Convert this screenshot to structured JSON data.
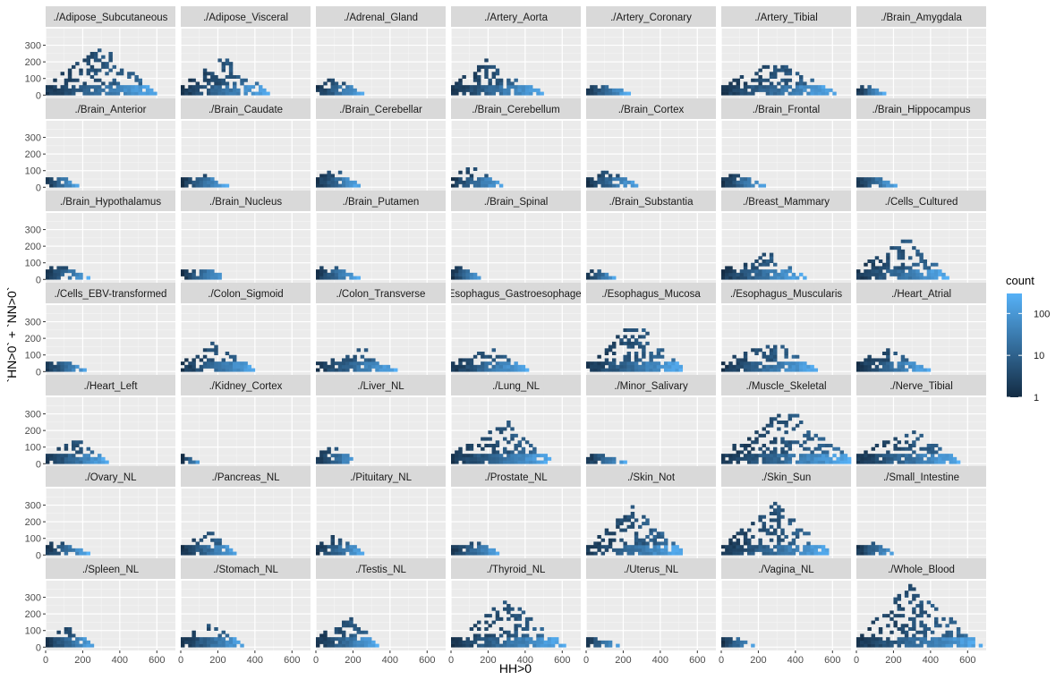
{
  "chart_data": {
    "type": "heatmap",
    "title": "",
    "xlabel": "HH>0",
    "ylabel": "`HN>0` + `NN>0`",
    "xlim": [
      0,
      700
    ],
    "ylim": [
      -20,
      400
    ],
    "x_ticks": [
      0,
      200,
      400,
      600
    ],
    "y_ticks": [
      0,
      100,
      200,
      300
    ],
    "grid": true,
    "facet_rows": 7,
    "facet_cols": 7,
    "legend": {
      "title": "count",
      "position": "right",
      "scale": "log10",
      "breaks": [
        1,
        10,
        100
      ],
      "color_low": "#132B43",
      "color_high": "#56B1F7"
    },
    "panel_background": "#EBEBEB",
    "strip_background": "#D9D9D9",
    "panels": [
      {
        "label": "./Adipose_Subcutaneous",
        "x_max": 590,
        "y_peak": 290,
        "x_peak": 300
      },
      {
        "label": "./Adipose_Visceral",
        "x_max": 470,
        "y_peak": 220,
        "x_peak": 220
      },
      {
        "label": "./Adrenal_Gland",
        "x_max": 250,
        "y_peak": 95,
        "x_peak": 90
      },
      {
        "label": "./Artery_Aorta",
        "x_max": 500,
        "y_peak": 210,
        "x_peak": 180
      },
      {
        "label": "./Artery_Coronary",
        "x_max": 230,
        "y_peak": 65,
        "x_peak": 80
      },
      {
        "label": "./Artery_Tibial",
        "x_max": 620,
        "y_peak": 200,
        "x_peak": 300
      },
      {
        "label": "./Brain_Amygdala",
        "x_max": 150,
        "y_peak": 55,
        "x_peak": 40
      },
      {
        "label": "./Brain_Anterior",
        "x_max": 170,
        "y_peak": 65,
        "x_peak": 60
      },
      {
        "label": "./Brain_Caudate",
        "x_max": 250,
        "y_peak": 80,
        "x_peak": 100
      },
      {
        "label": "./Brain_Cerebellar",
        "x_max": 230,
        "y_peak": 95,
        "x_peak": 100
      },
      {
        "label": "./Brain_Cerebellum",
        "x_max": 280,
        "y_peak": 115,
        "x_peak": 100
      },
      {
        "label": "./Brain_Cortex",
        "x_max": 280,
        "y_peak": 90,
        "x_peak": 110
      },
      {
        "label": "./Brain_Frontal",
        "x_max": 240,
        "y_peak": 80,
        "x_peak": 80
      },
      {
        "label": "./Brain_Hippocampus",
        "x_max": 210,
        "y_peak": 75,
        "x_peak": 70
      },
      {
        "label": "./Brain_Hypothalamus",
        "x_max": 230,
        "y_peak": 75,
        "x_peak": 70
      },
      {
        "label": "./Brain_Nucleus",
        "x_max": 240,
        "y_peak": 80,
        "x_peak": 100
      },
      {
        "label": "./Brain_Putamen",
        "x_max": 230,
        "y_peak": 75,
        "x_peak": 80
      },
      {
        "label": "./Brain_Spinal",
        "x_max": 170,
        "y_peak": 65,
        "x_peak": 50
      },
      {
        "label": "./Brain_Substantia",
        "x_max": 160,
        "y_peak": 45,
        "x_peak": 50
      },
      {
        "label": "./Breast_Mammary",
        "x_max": 450,
        "y_peak": 160,
        "x_peak": 250
      },
      {
        "label": "./Cells_Cultured",
        "x_max": 490,
        "y_peak": 250,
        "x_peak": 280
      },
      {
        "label": "./Cells_EBV-transformed",
        "x_max": 220,
        "y_peak": 60,
        "x_peak": 80
      },
      {
        "label": "./Colon_Sigmoid",
        "x_max": 400,
        "y_peak": 180,
        "x_peak": 180
      },
      {
        "label": "./Colon_Transverse",
        "x_max": 430,
        "y_peak": 130,
        "x_peak": 250
      },
      {
        "label": "./Esophagus_Gastroesophageal",
        "x_max": 410,
        "y_peak": 130,
        "x_peak": 220
      },
      {
        "label": "./Esophagus_Mucosa",
        "x_max": 520,
        "y_peak": 300,
        "x_peak": 250
      },
      {
        "label": "./Esophagus_Muscularis",
        "x_max": 510,
        "y_peak": 190,
        "x_peak": 260
      },
      {
        "label": "./Heart_Atrial",
        "x_max": 390,
        "y_peak": 130,
        "x_peak": 150
      },
      {
        "label": "./Heart_Left",
        "x_max": 330,
        "y_peak": 140,
        "x_peak": 180
      },
      {
        "label": "./Kidney_Cortex",
        "x_max": 100,
        "y_peak": 30,
        "x_peak": 30
      },
      {
        "label": "./Liver_NL",
        "x_max": 230,
        "y_peak": 100,
        "x_peak": 100
      },
      {
        "label": "./Lung_NL",
        "x_max": 540,
        "y_peak": 250,
        "x_peak": 300
      },
      {
        "label": "./Minor_Salivary",
        "x_max": 220,
        "y_peak": 50,
        "x_peak": 60
      },
      {
        "label": "./Muscle_Skeletal",
        "x_max": 700,
        "y_peak": 340,
        "x_peak": 360
      },
      {
        "label": "./Nerve_Tibial",
        "x_max": 560,
        "y_peak": 200,
        "x_peak": 290
      },
      {
        "label": "./Ovary_NL",
        "x_max": 230,
        "y_peak": 65,
        "x_peak": 80
      },
      {
        "label": "./Pancreas_NL",
        "x_max": 300,
        "y_peak": 130,
        "x_peak": 160
      },
      {
        "label": "./Pituitary_NL",
        "x_max": 260,
        "y_peak": 130,
        "x_peak": 100
      },
      {
        "label": "./Prostate_NL",
        "x_max": 260,
        "y_peak": 90,
        "x_peak": 100
      },
      {
        "label": "./Skin_Not",
        "x_max": 520,
        "y_peak": 290,
        "x_peak": 250
      },
      {
        "label": "./Skin_Sun",
        "x_max": 590,
        "y_peak": 310,
        "x_peak": 290
      },
      {
        "label": "./Small_Intestine",
        "x_max": 210,
        "y_peak": 75,
        "x_peak": 70
      },
      {
        "label": "./Spleen_NL",
        "x_max": 260,
        "y_peak": 110,
        "x_peak": 120
      },
      {
        "label": "./Stomach_NL",
        "x_max": 340,
        "y_peak": 140,
        "x_peak": 170
      },
      {
        "label": "./Testis_NL",
        "x_max": 330,
        "y_peak": 170,
        "x_peak": 190
      },
      {
        "label": "./Thyroid_NL",
        "x_max": 610,
        "y_peak": 280,
        "x_peak": 300
      },
      {
        "label": "./Uterus_NL",
        "x_max": 180,
        "y_peak": 45,
        "x_peak": 50
      },
      {
        "label": "./Vagina_NL",
        "x_max": 180,
        "y_peak": 55,
        "x_peak": 50
      },
      {
        "label": "./Whole_Blood",
        "x_max": 670,
        "y_peak": 370,
        "x_peak": 280
      }
    ]
  }
}
